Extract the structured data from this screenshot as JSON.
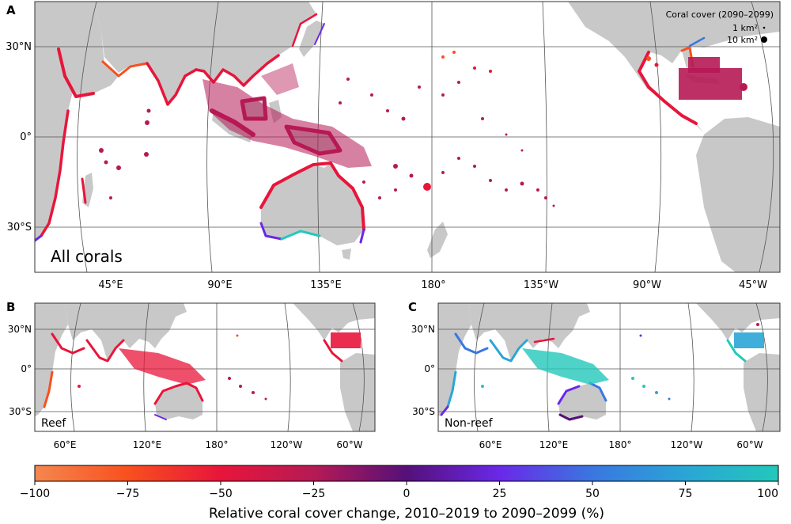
{
  "panels": [
    {
      "letter": "A",
      "label": "All corals",
      "lat_ticks": [
        "30°N",
        "0°",
        "30°S"
      ],
      "lon_ticks": [
        "45°E",
        "90°E",
        "135°E",
        "180°",
        "135°W",
        "90°W",
        "45°W"
      ],
      "legend": {
        "title": "Coral cover (2090–2099)",
        "items": [
          "1 km²",
          "10 km²"
        ]
      }
    },
    {
      "letter": "B",
      "label": "Reef",
      "lat_ticks": [
        "30°N",
        "0°",
        "30°S"
      ],
      "lon_ticks": [
        "60°E",
        "120°E",
        "180°",
        "120°W",
        "60°W"
      ]
    },
    {
      "letter": "C",
      "label": "Non-reef",
      "lat_ticks": [
        "30°N",
        "0°",
        "30°S"
      ],
      "lon_ticks": [
        "60°E",
        "120°E",
        "180°",
        "120°W",
        "60°W"
      ]
    }
  ],
  "colorbar": {
    "ticks": [
      "−100",
      "−75",
      "−50",
      "−25",
      "0",
      "25",
      "50",
      "75",
      "100"
    ],
    "label": "Relative coral cover change, 2010–2019 to 2090–2099 (%)",
    "colors": [
      "#f5874f",
      "#f8501e",
      "#e8153b",
      "#b61a55",
      "#551079",
      "#6a28e8",
      "#3a77e0",
      "#2aa5d6",
      "#23c8bb"
    ]
  },
  "colors": {
    "land": "#c8c8c8",
    "ocean": "#ffffff",
    "grid": "#555555"
  }
}
